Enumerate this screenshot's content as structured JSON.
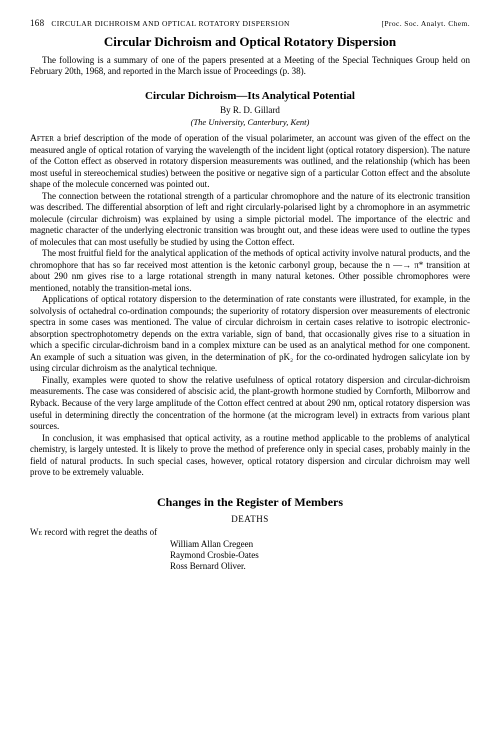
{
  "header": {
    "page_number": "168",
    "running_head_left": "CIRCULAR DICHROISM AND OPTICAL ROTATORY DISPERSION",
    "running_head_right": "[Proc. Soc. Analyt. Chem."
  },
  "title": "Circular Dichroism and Optical Rotatory Dispersion",
  "intro": "The following is a summary of one of the papers presented at a Meeting of the Special Techniques Group held on February 20th, 1968, and reported in the March issue of Proceedings (p. 38).",
  "paper": {
    "subtitle": "Circular Dichroism—Its Analytical Potential",
    "byline_prefix": "By ",
    "author": "R. D. Gillard",
    "affiliation": "(The University, Canterbury, Kent)",
    "paragraphs": [
      "AFTER a brief description of the mode of operation of the visual polarimeter, an account was given of the effect on the measured angle of optical rotation of varying the wavelength of the incident light (optical rotatory dispersion). The nature of the Cotton effect as observed in rotatory dispersion measurements was outlined, and the relationship (which has been most useful in stereochemical studies) between the positive or negative sign of a particular Cotton effect and the absolute shape of the molecule concerned was pointed out.",
      "The connection between the rotational strength of a particular chromophore and the nature of its electronic transition was described. The differential absorption of left and right circularly-polarised light by a chromophore in an asymmetric molecule (circular dichroism) was explained by using a simple pictorial model. The importance of the electric and magnetic character of the underlying electronic transition was brought out, and these ideas were used to outline the types of molecules that can most usefully be studied by using the Cotton effect.",
      "The most fruitful field for the analytical application of the methods of optical activity involve natural products, and the chromophore that has so far received most attention is the ketonic carbonyl group, because the n —→ π* transition at about 290 nm gives rise to a large rotational strength in many natural ketones. Other possible chromophores were mentioned, notably the transition-metal ions.",
      "Applications of optical rotatory dispersion to the determination of rate constants were illustrated, for example, in the solvolysis of octahedral co-ordination compounds; the superiority of rotatory dispersion over measurements of electronic spectra in some cases was mentioned. The value of circular dichroism in certain cases relative to isotropic electronic-absorption spectrophotometry depends on the extra variable, sign of band, that occasionally gives rise to a situation in which a specific circular-dichroism band in a complex mixture can be used as an analytical method for one component. An example of such a situation was given, in the determination of pK₂ for the co-ordinated hydrogen salicylate ion by using circular dichroism as the analytical technique.",
      "Finally, examples were quoted to show the relative usefulness of optical rotatory dispersion and circular-dichroism measurements. The case was considered of abscisic acid, the plant-growth hormone studied by Cornforth, Milborrow and Ryback. Because of the very large amplitude of the Cotton effect centred at about 290 nm, optical rotatory dispersion was useful in determining directly the concentration of the hormone (at the microgram level) in extracts from various plant sources.",
      "In conclusion, it was emphasised that optical activity, as a routine method applicable to the problems of analytical chemistry, is largely untested. It is likely to prove the method of preference only in special cases, probably mainly in the field of natural products. In such special cases, however, optical rotatory dispersion and circular dichroism may well prove to be extremely valuable."
    ]
  },
  "register": {
    "section_title": "Changes in the Register of Members",
    "deaths_head": "DEATHS",
    "intro_sc": "We",
    "intro_rest": " record with regret the deaths of",
    "names": [
      "William Allan Cregeen",
      "Raymond Crosbie-Oates",
      "Ross Bernard Oliver."
    ]
  }
}
